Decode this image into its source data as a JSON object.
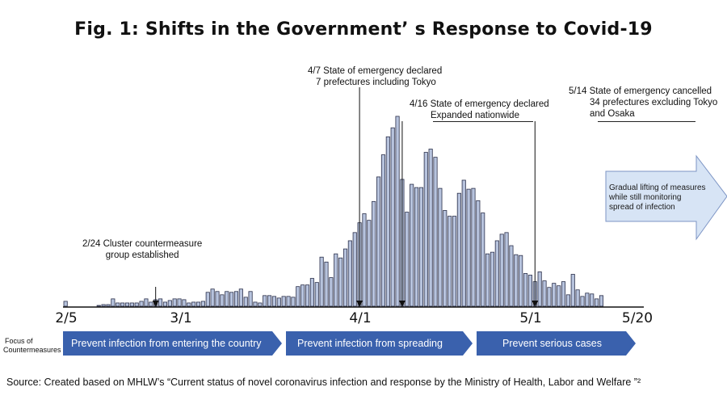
{
  "title": "Fig. 1: Shifts in the Government’ s Response to Covid-19",
  "colors": {
    "bar_fill": "#b7c3dd",
    "bar_stroke": "#2a2f4a",
    "phase_fill": "#3a61ad",
    "arrow_fill": "#d7e4f5",
    "arrow_stroke": "#7c94c4"
  },
  "annotations": {
    "cluster_line1": "2/24 Cluster countermeasure",
    "cluster_line2": "group established",
    "apr7_line1": "4/7  State of emergency declared",
    "apr7_line2": "7 prefectures including Tokyo",
    "apr16_line1": "4/16 State of emergency declared",
    "apr16_line2": "Expanded nationwide",
    "may14_line1": "5/14 State of emergency cancelled",
    "may14_line2": "34 prefectures excluding Tokyo",
    "may14_line3": "and Osaka",
    "gradual_line1": "Gradual lifting of measures",
    "gradual_line2": "while still monitoring",
    "gradual_line3": "spread of infection"
  },
  "focus_label_line1": "Focus of",
  "focus_label_line2": "Countermeasures",
  "phases": [
    "Prevent infection from entering the country",
    "Prevent infection from spreading",
    "Prevent serious cases"
  ],
  "source": "Source: Created based on MHLW’s “Current status of novel coronavirus infection and response by the Ministry of Health, Labor and Welfare ”²",
  "chart_data": {
    "type": "bar",
    "x_ticks": [
      "2/5",
      "3/1",
      "4/1",
      "5/1",
      "5/20"
    ],
    "start_date": "2/5",
    "end_date": "5/20",
    "ylim": [
      0,
      230
    ],
    "values": [
      6,
      0,
      0,
      0,
      0,
      0,
      0,
      1,
      2,
      2,
      9,
      4,
      4,
      4,
      4,
      4,
      6,
      9,
      5,
      8,
      9,
      5,
      7,
      9,
      9,
      8,
      4,
      5,
      5,
      6,
      17,
      21,
      18,
      14,
      18,
      17,
      18,
      21,
      11,
      18,
      5,
      4,
      13,
      13,
      12,
      10,
      12,
      12,
      11,
      24,
      26,
      26,
      34,
      29,
      60,
      54,
      35,
      64,
      59,
      70,
      80,
      90,
      102,
      113,
      105,
      128,
      158,
      185,
      207,
      218,
      232,
      155,
      115,
      149,
      145,
      145,
      188,
      192,
      182,
      144,
      117,
      110,
      110,
      138,
      154,
      143,
      144,
      129,
      114,
      64,
      66,
      80,
      88,
      90,
      74,
      63,
      62,
      40,
      38,
      30,
      42,
      31,
      23,
      28,
      25,
      30,
      14,
      39,
      20,
      12,
      16,
      15,
      9,
      13
    ],
    "markers": {
      "2/24": 19,
      "4/7": 62,
      "4/16": 71,
      "5/14": 99
    }
  }
}
